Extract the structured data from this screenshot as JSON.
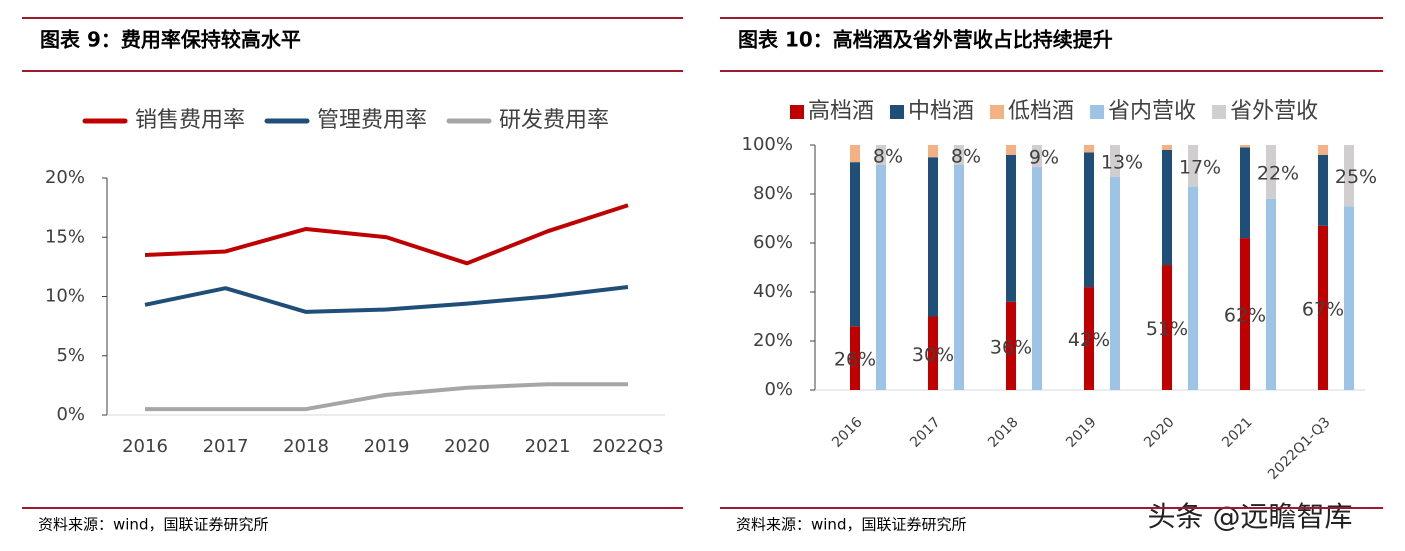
{
  "chart_data": [
    {
      "type": "line",
      "title": "图表 9：费用率保持较高水平",
      "source": "资料来源：wind，国联证券研究所",
      "categories": [
        "2016",
        "2017",
        "2018",
        "2019",
        "2020",
        "2021",
        "2022Q3"
      ],
      "series": [
        {
          "name": "销售费用率",
          "color": "#c00000",
          "values": [
            13.5,
            13.8,
            15.7,
            15.0,
            12.8,
            15.5,
            17.7
          ]
        },
        {
          "name": "管理费用率",
          "color": "#1f4e79",
          "values": [
            9.3,
            10.7,
            8.7,
            8.9,
            9.4,
            10.0,
            10.8
          ]
        },
        {
          "name": "研发费用率",
          "color": "#a6a6a6",
          "values": [
            0.5,
            0.5,
            0.5,
            1.7,
            2.3,
            2.6,
            2.6
          ]
        }
      ],
      "ylim": [
        0,
        20
      ],
      "yticks": [
        {
          "value": 0,
          "label": "0%"
        },
        {
          "value": 5,
          "label": "5%"
        },
        {
          "value": 10,
          "label": "10%"
        },
        {
          "value": 15,
          "label": "15%"
        },
        {
          "value": 20,
          "label": "20%"
        }
      ]
    },
    {
      "type": "stacked_bar",
      "title": "图表 10：高档酒及省外营收占比持续提升",
      "source": "资料来源：wind，国联证券研究所",
      "categories": [
        "2016",
        "2017",
        "2018",
        "2019",
        "2020",
        "2021",
        "2022Q1-Q3"
      ],
      "series": [
        {
          "name": "高档酒",
          "color": "#c00000",
          "stack": 0,
          "values": [
            26,
            30,
            36,
            42,
            51,
            62,
            67
          ],
          "value_labels": [
            "26%",
            "30%",
            "36%",
            "42%",
            "51%",
            "62%",
            "67%"
          ]
        },
        {
          "name": "中档酒",
          "color": "#1f4e79",
          "stack": 0,
          "values": [
            67,
            65,
            60,
            55,
            47,
            37,
            29
          ]
        },
        {
          "name": "低档酒",
          "color": "#f4b183",
          "stack": 0,
          "values": [
            7,
            5,
            4,
            3,
            2,
            1,
            4
          ]
        },
        {
          "name": "省内营收",
          "color": "#9dc3e6",
          "stack": 1,
          "values": [
            92,
            92,
            91,
            87,
            83,
            78,
            75
          ]
        },
        {
          "name": "省外营收",
          "color": "#d0cece",
          "stack": 1,
          "values": [
            8,
            8,
            9,
            13,
            17,
            22,
            25
          ],
          "value_labels": [
            "8%",
            "8%",
            "9%",
            "13%",
            "17%",
            "22%",
            "25%"
          ]
        }
      ],
      "ylim": [
        0,
        100
      ],
      "yticks": [
        {
          "value": 0,
          "label": "0%"
        },
        {
          "value": 20,
          "label": "20%"
        },
        {
          "value": 40,
          "label": "40%"
        },
        {
          "value": 60,
          "label": "60%"
        },
        {
          "value": 80,
          "label": "80%"
        },
        {
          "value": 100,
          "label": "100%"
        }
      ]
    }
  ],
  "watermark": "头条 @远瞻智库"
}
